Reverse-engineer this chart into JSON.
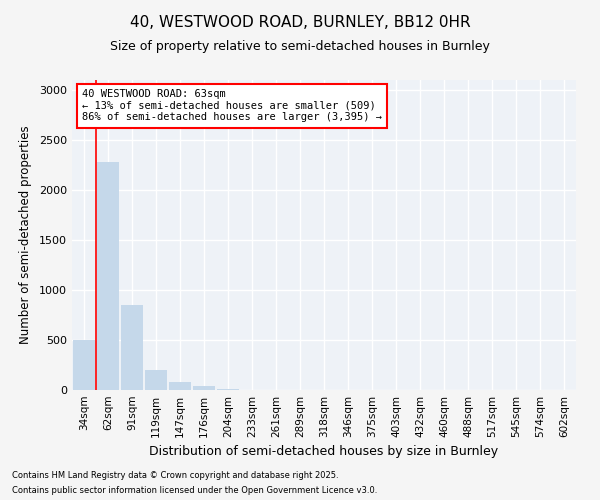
{
  "title_line1": "40, WESTWOOD ROAD, BURNLEY, BB12 0HR",
  "title_line2": "Size of property relative to semi-detached houses in Burnley",
  "xlabel": "Distribution of semi-detached houses by size in Burnley",
  "ylabel": "Number of semi-detached properties",
  "categories": [
    "34sqm",
    "62sqm",
    "91sqm",
    "119sqm",
    "147sqm",
    "176sqm",
    "204sqm",
    "233sqm",
    "261sqm",
    "289sqm",
    "318sqm",
    "346sqm",
    "375sqm",
    "403sqm",
    "432sqm",
    "460sqm",
    "488sqm",
    "517sqm",
    "545sqm",
    "574sqm",
    "602sqm"
  ],
  "values": [
    500,
    2280,
    850,
    200,
    80,
    40,
    15,
    5,
    2,
    1,
    1,
    0,
    0,
    0,
    0,
    0,
    0,
    0,
    0,
    0,
    0
  ],
  "bar_color": "#c5d8ea",
  "bar_edge_color": "#c5d8ea",
  "ylim": [
    0,
    3100
  ],
  "yticks": [
    0,
    500,
    1000,
    1500,
    2000,
    2500,
    3000
  ],
  "annotation_line1": "40 WESTWOOD ROAD: 63sqm",
  "annotation_line2": "← 13% of semi-detached houses are smaller (509)",
  "annotation_line3": "86% of semi-detached houses are larger (3,395) →",
  "red_line_x": 0.5,
  "footer_line1": "Contains HM Land Registry data © Crown copyright and database right 2025.",
  "footer_line2": "Contains public sector information licensed under the Open Government Licence v3.0.",
  "bg_color": "#f5f5f5",
  "plot_bg_color": "#eef2f7"
}
